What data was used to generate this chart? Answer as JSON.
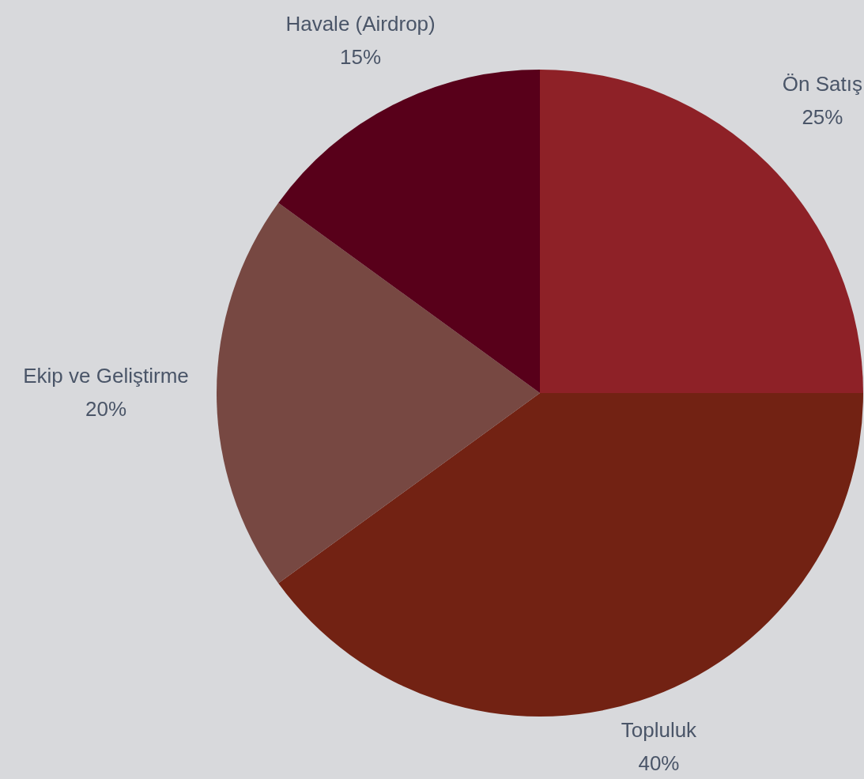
{
  "chart_data": {
    "type": "pie",
    "categories": [
      "Ön Satış",
      "Topluluk",
      "Ekip ve Geliştirme",
      "Havale (Airdrop)"
    ],
    "values": [
      25,
      40,
      20,
      15
    ],
    "colors": [
      "#8e2127",
      "#722213",
      "#774842",
      "#58001a"
    ],
    "value_labels": [
      "25%",
      "40%",
      "20%",
      "15%"
    ],
    "legend": false
  }
}
